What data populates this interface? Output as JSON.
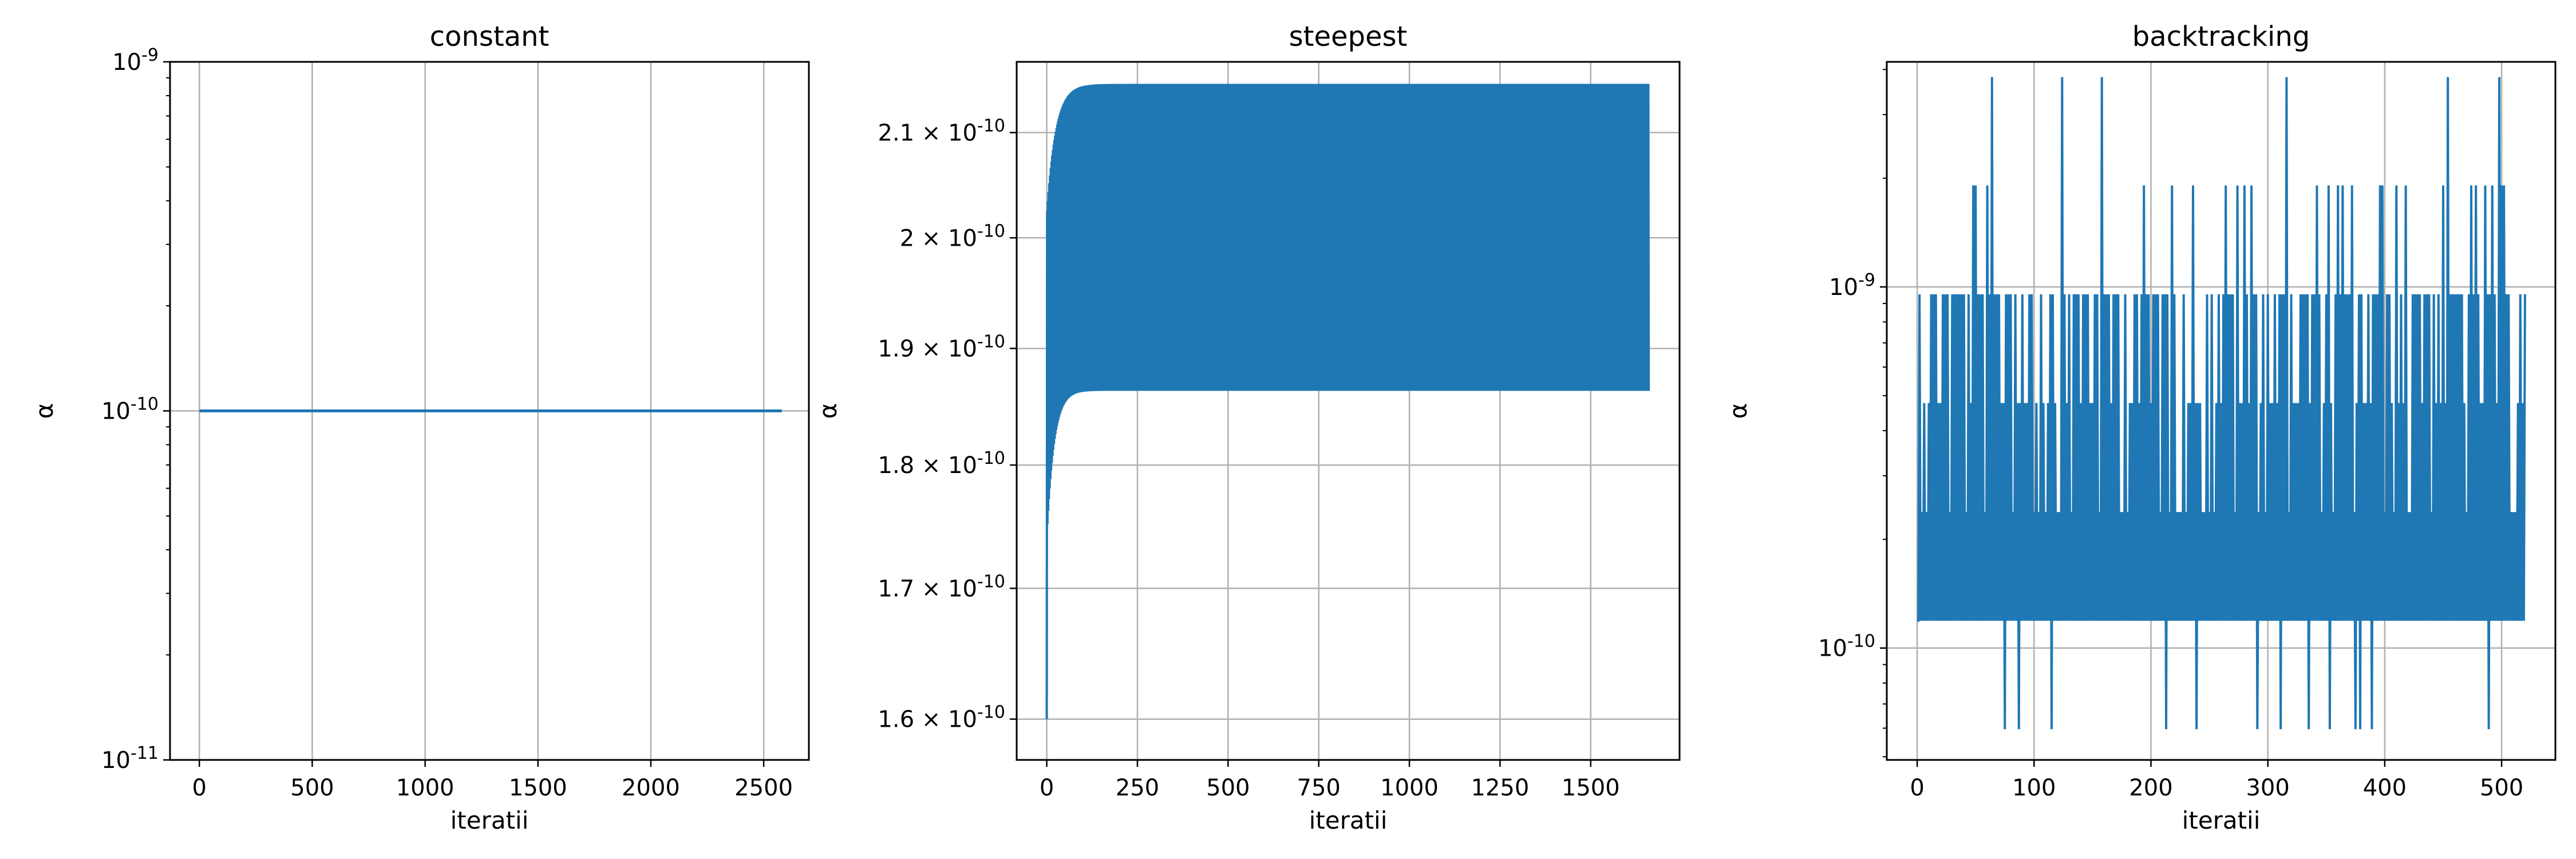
{
  "colors": {
    "series": "#1f77b4",
    "grid": "#b0b0b0",
    "axes": "#000000"
  },
  "chart_data": [
    {
      "id": "constant",
      "type": "line",
      "title": "constant",
      "xlabel": "iteratii",
      "ylabel": "α",
      "yscale": "log",
      "xlim": [
        -130,
        2700
      ],
      "ylim": [
        1e-11,
        1e-09
      ],
      "x_ticks": [
        0,
        500,
        1000,
        1500,
        2000,
        2500
      ],
      "y_ticks": [
        {
          "value": 1e-11,
          "label": "10^-11"
        },
        {
          "value": 1e-10,
          "label": "10^-10"
        },
        {
          "value": 1e-09,
          "label": "10^-9"
        }
      ],
      "grid": true,
      "series": [
        {
          "x": [
            0,
            2580
          ],
          "y": [
            1e-10,
            1e-10
          ]
        }
      ]
    },
    {
      "id": "steepest",
      "type": "line",
      "title": "steepest",
      "xlabel": "iteratii",
      "ylabel": "α",
      "yscale": "log",
      "xlim": [
        -83,
        1745
      ],
      "ylim": [
        1.57e-10,
        2.17e-10
      ],
      "x_ticks": [
        0,
        250,
        500,
        750,
        1000,
        1250,
        1500
      ],
      "y_ticks": [
        {
          "value": 1.6e-10,
          "label": "1.6 × 10^-10"
        },
        {
          "value": 1.7e-10,
          "label": "1.7 × 10^-10"
        },
        {
          "value": 1.8e-10,
          "label": "1.8 × 10^-10"
        },
        {
          "value": 1.9e-10,
          "label": "1.9 × 10^-10"
        },
        {
          "value": 2e-10,
          "label": "2 × 10^-10"
        },
        {
          "value": 2.1e-10,
          "label": "2.1 × 10^-10"
        }
      ],
      "grid": true,
      "oscillation": {
        "n_iterations": 1660,
        "start": 1.6e-10,
        "upper_limit": 2.148e-10,
        "lower_limit": 1.863e-10,
        "settle_iterations": 100
      }
    },
    {
      "id": "backtracking",
      "type": "line",
      "title": "backtracking",
      "xlabel": "iteratii",
      "ylabel": "α",
      "yscale": "log",
      "xlim": [
        -26,
        546
      ],
      "ylim": [
        4.9e-11,
        4.2e-09
      ],
      "x_ticks": [
        0,
        100,
        200,
        300,
        400,
        500
      ],
      "y_ticks": [
        {
          "value": 1e-10,
          "label": "10^-10"
        },
        {
          "value": 1e-09,
          "label": "10^-9"
        }
      ],
      "grid": true,
      "levels": [
        5.96e-11,
        1.19e-10,
        2.38e-10,
        4.77e-10,
        9.54e-10,
        1.91e-09,
        3.81e-09
      ],
      "n_iterations": 520
    }
  ]
}
